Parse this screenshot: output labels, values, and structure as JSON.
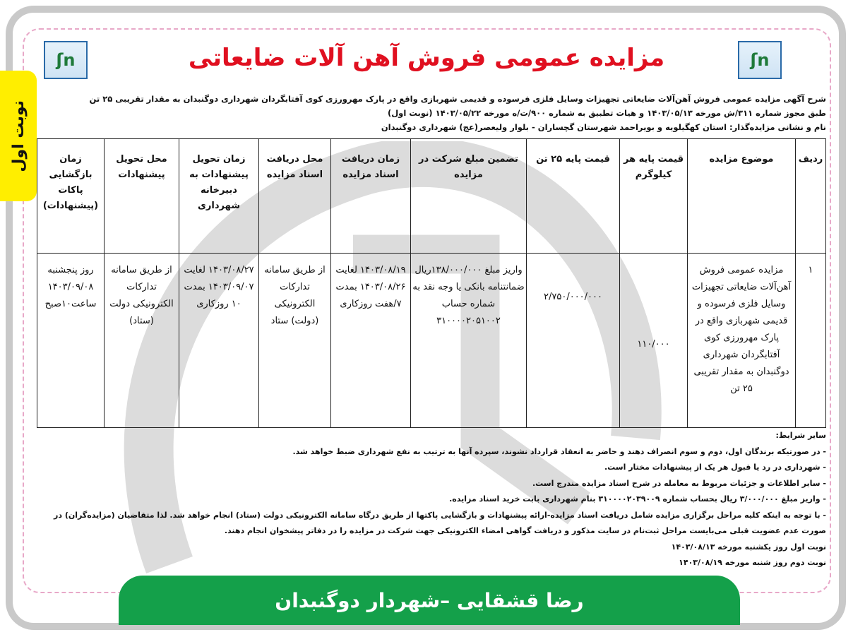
{
  "badge": "نوبت اول",
  "title": "مزایده عمومی فروش آهن آلات ضایعاتی",
  "colors": {
    "title": "#e01020",
    "banner": "#14a04a",
    "badge": "#ffee00"
  },
  "intro": [
    "شرح آگهی مزایده عمومی فروش آهن‌آلات ضایعاتی تجهیزات وسایل فلزی فرسوده و قدیمی شهربازی واقع در پارک مهرورزی کوی آفتابگردان شهرداری دوگنبدان به مقدار تقریبی ۲۵ تن",
    "طبق مجوز شماره ۳۱۱/ش مورخه ۱۴۰۳/۰۵/۱۳ و هیات تطبیق به شماره ۹۰۰/ت/ه مورخه ۱۴۰۳/۰۵/۲۲ (نوبت اول)",
    "نام و نشانی مزایده‌گذار: استان کهگیلویه و بویراحمد   شهرستان گچساران - بلوار ولیعصر(عج) شهرداری دوگنبدان"
  ],
  "table": {
    "headers": [
      "ردیف",
      "موضوع مزایده",
      "قیمت پایه هر کیلوگرم",
      "قیمت پایه ۲۵ تن",
      "تضمین مبلغ شرکت در مزایده",
      "زمان دریافت اسناد مزایده",
      "محل دریافت اسناد مزایده",
      "زمان تحویل پیشنهادات به دبیرخانه شهرداری",
      "محل تحویل پیشنهادات",
      "زمان بازگشایی پاکات (پیشنهادات)"
    ],
    "row": [
      "۱",
      "مزایده عمومی فروش آهن‌آلات ضایعاتی تجهیزات وسایل فلزی فرسوده و قدیمی شهربازی واقع در پارک مهرورزی کوی آفتابگردان شهرداری دوگنبدان به مقدار تقریبی ۲۵ تن",
      "۱۱۰/۰۰۰",
      "۲/۷۵۰/۰۰۰/۰۰۰",
      "واریز مبلغ ۱۳۸/۰۰۰/۰۰۰ریال ضمانتنامه بانکی یا وجه نقد به شماره حساب ۳۱۰۰۰۰۲۰۵۱۰۰۲",
      "۱۴۰۳/۰۸/۱۹ لغایت ۱۴۰۳/۰۸/۲۶ بمدت ۷/هفت روزکاری",
      "از طریق سامانه تدارکات الکترونیکی (دولت) ستاد",
      "۱۴۰۳/۰۸/۲۷ لغایت ۱۴۰۳/۰۹/۰۷ بمدت ۱۰ روزکاری",
      "از طریق سامانه تدارکات الکترونیکی دولت (ستاد)",
      "روز پنجشنبه ۱۴۰۳/۰۹/۰۸ ساعت۱۰صبح"
    ]
  },
  "conditions": {
    "heading": "سایر شرایط:",
    "items": [
      "- در صورتیکه برندگان اول، دوم و سوم انصراف دهند و حاضر به انعقاد قرارداد نشوند، سپرده آنها به ترتیب به نفع شهرداری ضبط خواهد شد.",
      "- شهرداری در رد یا قبول هر یک از پیشنهادات مختار است.",
      "- سایر اطلاعات و جزئیات مربوط به معامله در شرح اسناد مزایده مندرج است.",
      "- واریز مبلغ ۳/۰۰۰/۰۰۰ ریال بحساب شماره ۳۱۰۰۰۰۲۰۳۹۰۰۹ بنام شهرداری بابت خرید اسناد مزایده.",
      "- با توجه به اینکه کلیه مراحل برگزاری مزایده شامل دریافت اسناد مزایده-ارائه پیشنهادات و بازگشایی پاکتها از طریق درگاه سامانه الکترونیکی دولت (ستاد) انجام خواهد شد. لذا متقاضیان (مزایده‌گران) در صورت عدم عضویت قبلی می‌بایست مراحل ثبت‌نام در سایت مذکور و دریافت گواهی امضاء الکترونیکی جهت شرکت در مزایده را در دفاتر پیشخوان انجام دهند.",
      "نوبت اول روز یکشنبه مورخه ۱۴۰۳/۰۸/۱۳",
      "نوبت دوم روز شنبه مورخه ۱۴۰۳/۰۸/۱۹"
    ]
  },
  "footer": "رضا قشقایی –شهردار دوگنبدان"
}
